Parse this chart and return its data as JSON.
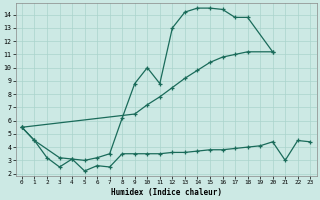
{
  "bg_color": "#cce9e4",
  "grid_color": "#aad4cc",
  "line_color": "#1a6b5a",
  "xlabel": "Humidex (Indice chaleur)",
  "xlim": [
    -0.5,
    23.5
  ],
  "ylim": [
    1.85,
    14.85
  ],
  "xticks": [
    0,
    1,
    2,
    3,
    4,
    5,
    6,
    7,
    8,
    9,
    10,
    11,
    12,
    13,
    14,
    15,
    16,
    17,
    18,
    19,
    20,
    21,
    22,
    23
  ],
  "yticks": [
    2,
    3,
    4,
    5,
    6,
    7,
    8,
    9,
    10,
    11,
    12,
    13,
    14
  ],
  "line1_x": [
    0,
    1,
    3,
    4,
    5,
    6,
    7,
    8,
    9,
    10,
    11,
    12,
    13,
    14,
    15,
    16,
    17,
    18,
    20
  ],
  "line1_y": [
    5.5,
    4.5,
    3.2,
    3.1,
    3.0,
    3.2,
    3.5,
    6.2,
    8.8,
    10.0,
    8.8,
    13.0,
    14.2,
    14.5,
    14.5,
    14.4,
    13.8,
    13.8,
    11.2
  ],
  "line2_x": [
    0,
    9,
    10,
    11,
    12,
    13,
    14,
    15,
    16,
    17,
    18,
    20
  ],
  "line2_y": [
    5.5,
    6.5,
    7.2,
    7.8,
    8.5,
    9.2,
    9.8,
    10.4,
    10.8,
    11.0,
    11.2,
    11.2
  ],
  "line3_x": [
    0,
    1,
    2,
    3,
    4,
    5,
    6,
    7,
    8,
    9,
    10,
    11,
    12,
    13,
    14,
    15,
    16,
    17,
    18,
    19,
    20,
    21,
    22,
    23
  ],
  "line3_y": [
    5.5,
    4.5,
    3.2,
    2.5,
    3.1,
    2.2,
    2.6,
    2.5,
    3.5,
    3.5,
    3.5,
    3.5,
    3.6,
    3.6,
    3.7,
    3.8,
    3.8,
    3.9,
    4.0,
    4.1,
    4.4,
    3.0,
    4.5,
    4.4
  ]
}
